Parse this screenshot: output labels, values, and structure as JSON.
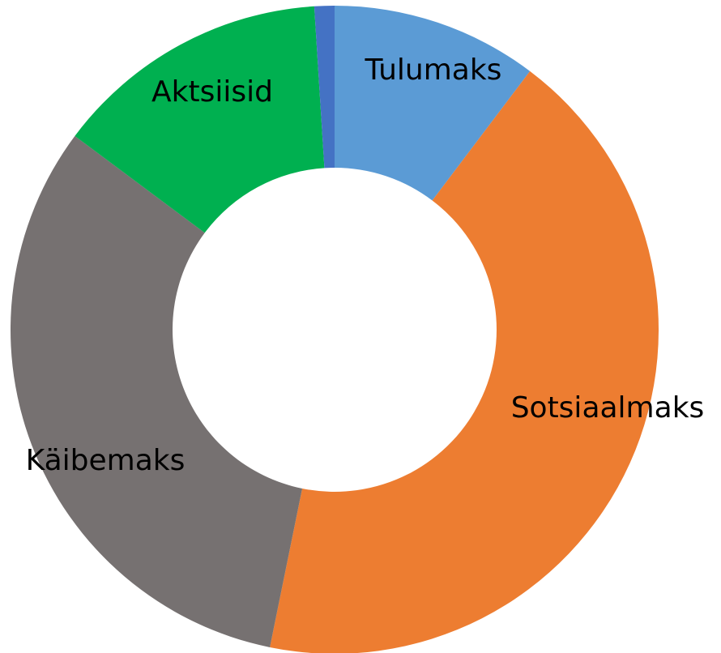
{
  "chart_data": {
    "type": "donut",
    "categories": [
      "Tulumaks",
      "Sotsiaalmaks",
      "Käibemaks",
      "Aktsiisid",
      null
    ],
    "values": [
      10.3,
      42.9,
      32.0,
      13.8,
      1.0
    ],
    "colors": [
      "#5b9bd5",
      "#ed7d31",
      "#767171",
      "#00b050",
      "#4472c4"
    ]
  }
}
